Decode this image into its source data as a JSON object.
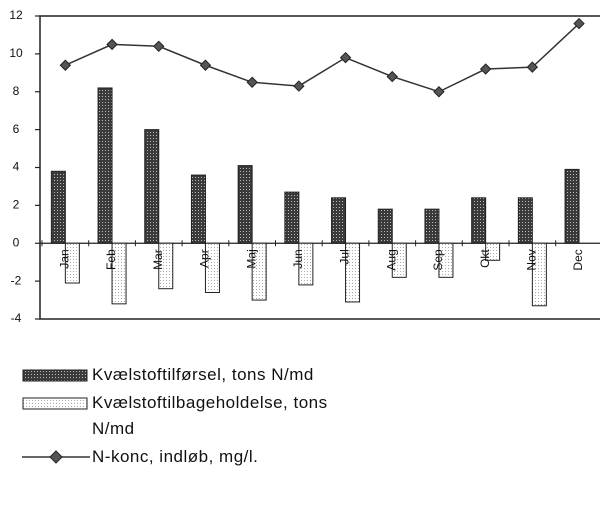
{
  "chart_data": {
    "type": "bar",
    "categories": [
      "Jan",
      "Feb",
      "Mar",
      "Apr",
      "Maj",
      "Jun",
      "Jul",
      "Aug",
      "Sep",
      "Okt",
      "Nov",
      "Dec"
    ],
    "series": [
      {
        "name": "Kvælstoftilførsel, tons N/md",
        "type": "bar",
        "color": "#4a4a4a",
        "values": [
          3.8,
          8.2,
          6.0,
          3.6,
          4.1,
          2.7,
          2.4,
          1.8,
          1.8,
          2.4,
          2.4,
          3.9
        ]
      },
      {
        "name": "Kvælstoftilbageholdelse, tons N/md",
        "type": "bar",
        "color": "#ffffff",
        "values": [
          -2.1,
          -3.2,
          -2.4,
          -2.6,
          -3.0,
          -2.2,
          -3.1,
          -1.8,
          -1.8,
          -0.9,
          -3.3,
          0
        ]
      },
      {
        "name": "N-konc, indløb, mg/l.",
        "type": "line",
        "color": "#333333",
        "values": [
          9.4,
          10.5,
          10.4,
          9.4,
          8.5,
          8.3,
          9.8,
          8.8,
          8.0,
          9.2,
          9.3,
          11.6
        ]
      }
    ],
    "ylim": [
      -4,
      12
    ],
    "yticks": [
      -4,
      -2,
      0,
      2,
      4,
      6,
      8,
      10,
      12
    ]
  }
}
